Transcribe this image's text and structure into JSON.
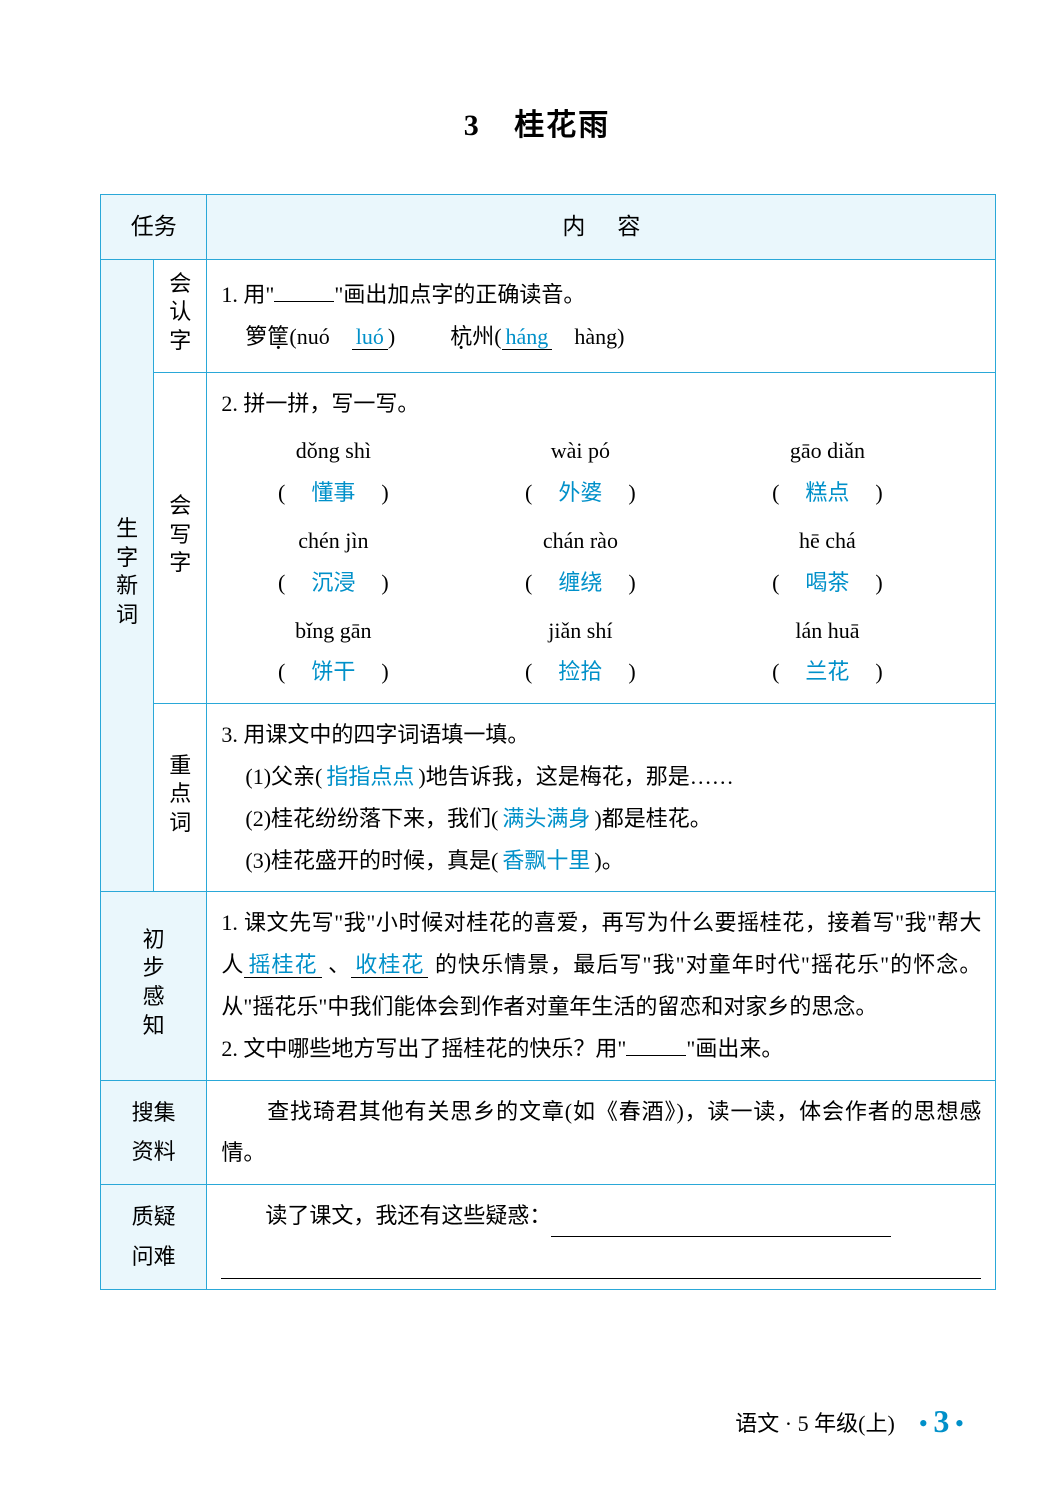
{
  "colors": {
    "border": "#2aa8d8",
    "headerBg": "#eaf7fc",
    "answer": "#0090c9"
  },
  "title": {
    "number": "3",
    "text": "桂花雨"
  },
  "headers": {
    "col1": "任务",
    "col2a": "内",
    "col2b": "容"
  },
  "rowLabels": {
    "shengzi": "生字新词",
    "huiren": "会认字",
    "huixie": "会写字",
    "zhongdian": "重点词",
    "chubu": "初步感知",
    "souji_a": "搜集",
    "souji_b": "资料",
    "zhiyi_a": "质疑",
    "zhiyi_b": "问难"
  },
  "q1": {
    "stem_a": "1. 用\"",
    "stem_b": "\"画出加点字的正确读音。",
    "item1_pre": "箩",
    "item1_char": "筐",
    "item1_opt1": "(nuó",
    "item1_ans": "luó",
    "item1_end": ")",
    "item2_char": "杭",
    "item2_post": "州(",
    "item2_ans": "háng",
    "item2_opt2": "hàng)"
  },
  "q2": {
    "stem": "2. 拼一拼，写一写。",
    "rows": [
      [
        {
          "py": "dǒng shì",
          "ans": "懂事"
        },
        {
          "py": "wài pó",
          "ans": "外婆"
        },
        {
          "py": "gāo diǎn",
          "ans": "糕点"
        }
      ],
      [
        {
          "py": "chén jìn",
          "ans": "沉浸"
        },
        {
          "py": "chán rào",
          "ans": "缠绕"
        },
        {
          "py": "hē chá",
          "ans": "喝茶"
        }
      ],
      [
        {
          "py": "bǐng gān",
          "ans": "饼干"
        },
        {
          "py": "jiǎn shí",
          "ans": "捡拾"
        },
        {
          "py": "lán huā",
          "ans": "兰花"
        }
      ]
    ]
  },
  "q3": {
    "stem": "3. 用课文中的四字词语填一填。",
    "item1_a": "(1)父亲(",
    "item1_ans": "指指点点",
    "item1_b": ")地告诉我，这是梅花，那是……",
    "item2_a": "(2)桂花纷纷落下来，我们(",
    "item2_ans": "满头满身",
    "item2_b": ")都是桂花。",
    "item3_a": "(3)桂花盛开的时候，真是(",
    "item3_ans": "香飘十里",
    "item3_b": ")。"
  },
  "chubu": {
    "p1_a": "1. 课文先写\"我\"小时候对桂花的喜爱，再写为什么要摇桂花，接着写\"我\"帮大人",
    "p1_ans1": "摇桂花",
    "p1_sep": "、",
    "p1_ans2": "收桂花",
    "p1_b": "的快乐情景，最后写\"我\"对童年时代\"摇花乐\"的怀念。从\"摇花乐\"中我们能体会到作者对童年生活的留恋和对家乡的思念。",
    "p2_a": "2. 文中哪些地方写出了摇桂花的快乐？用\"",
    "p2_b": "\"画出来。"
  },
  "souji": {
    "text": "　　查找琦君其他有关思乡的文章(如《春酒》)，读一读，体会作者的思想感情。"
  },
  "zhiyi": {
    "text": "　　读了课文，我还有这些疑惑："
  },
  "footer": {
    "text": "语文 · 5 年级(上)",
    "page": "3"
  }
}
